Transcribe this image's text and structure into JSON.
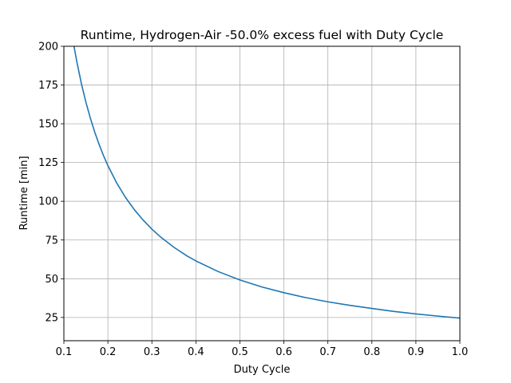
{
  "chart_data": {
    "type": "line",
    "title": "Runtime, Hydrogen-Air -50.0% excess fuel with Duty Cycle",
    "xlabel": "Duty Cycle",
    "ylabel": "Runtime [min]",
    "xlim": [
      0.1,
      1.0
    ],
    "ylim": [
      10,
      200
    ],
    "grid": true,
    "legend": "none",
    "x_ticks": [
      "0.1",
      "0.2",
      "0.3",
      "0.4",
      "0.5",
      "0.6",
      "0.7",
      "0.8",
      "0.9",
      "1.0"
    ],
    "y_ticks": [
      "25",
      "50",
      "75",
      "100",
      "125",
      "150",
      "175",
      "200"
    ],
    "series": [
      {
        "color": "#1f77b4",
        "x": [
          0.123,
          0.13,
          0.14,
          0.15,
          0.16,
          0.17,
          0.18,
          0.19,
          0.2,
          0.22,
          0.24,
          0.26,
          0.28,
          0.3,
          0.32,
          0.35,
          0.38,
          0.4,
          0.45,
          0.5,
          0.55,
          0.6,
          0.65,
          0.7,
          0.75,
          0.8,
          0.85,
          0.9,
          0.95,
          1.0
        ],
        "y": [
          200,
          189.2,
          175.7,
          164.0,
          153.8,
          144.7,
          136.7,
          129.5,
          123.0,
          111.8,
          102.5,
          94.6,
          87.9,
          82.0,
          76.9,
          70.3,
          64.7,
          61.5,
          54.7,
          49.2,
          44.7,
          41.0,
          37.8,
          35.1,
          32.8,
          30.8,
          28.9,
          27.3,
          25.9,
          24.6
        ]
      }
    ]
  }
}
